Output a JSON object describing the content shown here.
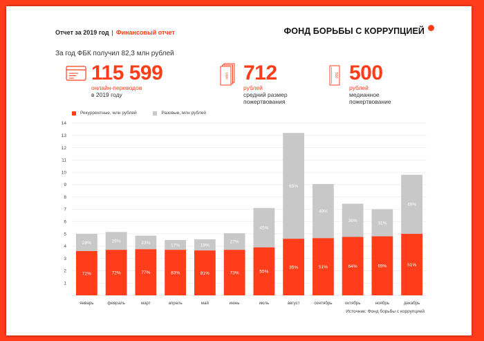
{
  "header": {
    "title": "Отчет за 2019 год",
    "separator": "|",
    "subtitle": "Финансовый отчет",
    "brand": "ФОНД БОРЬБЫ С КОРРУПЦИЕЙ"
  },
  "summary": "За год ФБК получил 82,3 млн рублей",
  "stats": [
    {
      "value": "115 599",
      "line1": "онлайн-переводов",
      "line2": "в 2019 году",
      "line3": "",
      "icon": "card-icon"
    },
    {
      "value": "712",
      "line1": "рублей",
      "line2": "средний размер",
      "line3": "пожертвования",
      "icon": "banknotes-stack-icon"
    },
    {
      "value": "500",
      "line1": "рублей",
      "line2": "медианное",
      "line3": "пожертвование",
      "icon": "banknote-icon"
    }
  ],
  "icon_texts": {
    "stack_note": "1000",
    "single_note": "500"
  },
  "colors": {
    "accent": "#ff3d1a",
    "secondary": "#c8c8c8"
  },
  "source": "Источник: Фонд борьбы с коррупцией",
  "chart_data": {
    "type": "bar",
    "stacked": true,
    "categories": [
      "январь",
      "февраль",
      "март",
      "апрель",
      "май",
      "июнь",
      "июль",
      "август",
      "сентябрь",
      "октябрь",
      "ноябрь",
      "декабрь"
    ],
    "series": [
      {
        "name": "Рекуррентные, млн рублей",
        "color": "#ff3d1a",
        "values": [
          3.6,
          3.7,
          3.75,
          3.7,
          3.65,
          3.7,
          3.9,
          4.6,
          4.65,
          4.75,
          4.8,
          5.0
        ],
        "labels": [
          "72%",
          "72%",
          "77%",
          "83%",
          "81%",
          "73%",
          "55%",
          "35%",
          "51%",
          "64%",
          "69%",
          "51%"
        ]
      },
      {
        "name": "Разовые, млн рублей",
        "color": "#c8c8c8",
        "values": [
          1.4,
          1.45,
          1.1,
          0.8,
          0.9,
          1.35,
          3.2,
          8.6,
          4.4,
          2.7,
          2.2,
          4.8
        ],
        "labels": [
          "28%",
          "28%",
          "23%",
          "17%",
          "19%",
          "27%",
          "45%",
          "65%",
          "49%",
          "36%",
          "31%",
          "49%"
        ]
      }
    ],
    "yticks": [
      "1",
      "2",
      "3",
      "4",
      "5",
      "6",
      "7",
      "8",
      "9",
      "10",
      "11",
      "12",
      "13",
      "14"
    ],
    "ylim": [
      0,
      14
    ],
    "grid": true,
    "legend": "top-left"
  }
}
